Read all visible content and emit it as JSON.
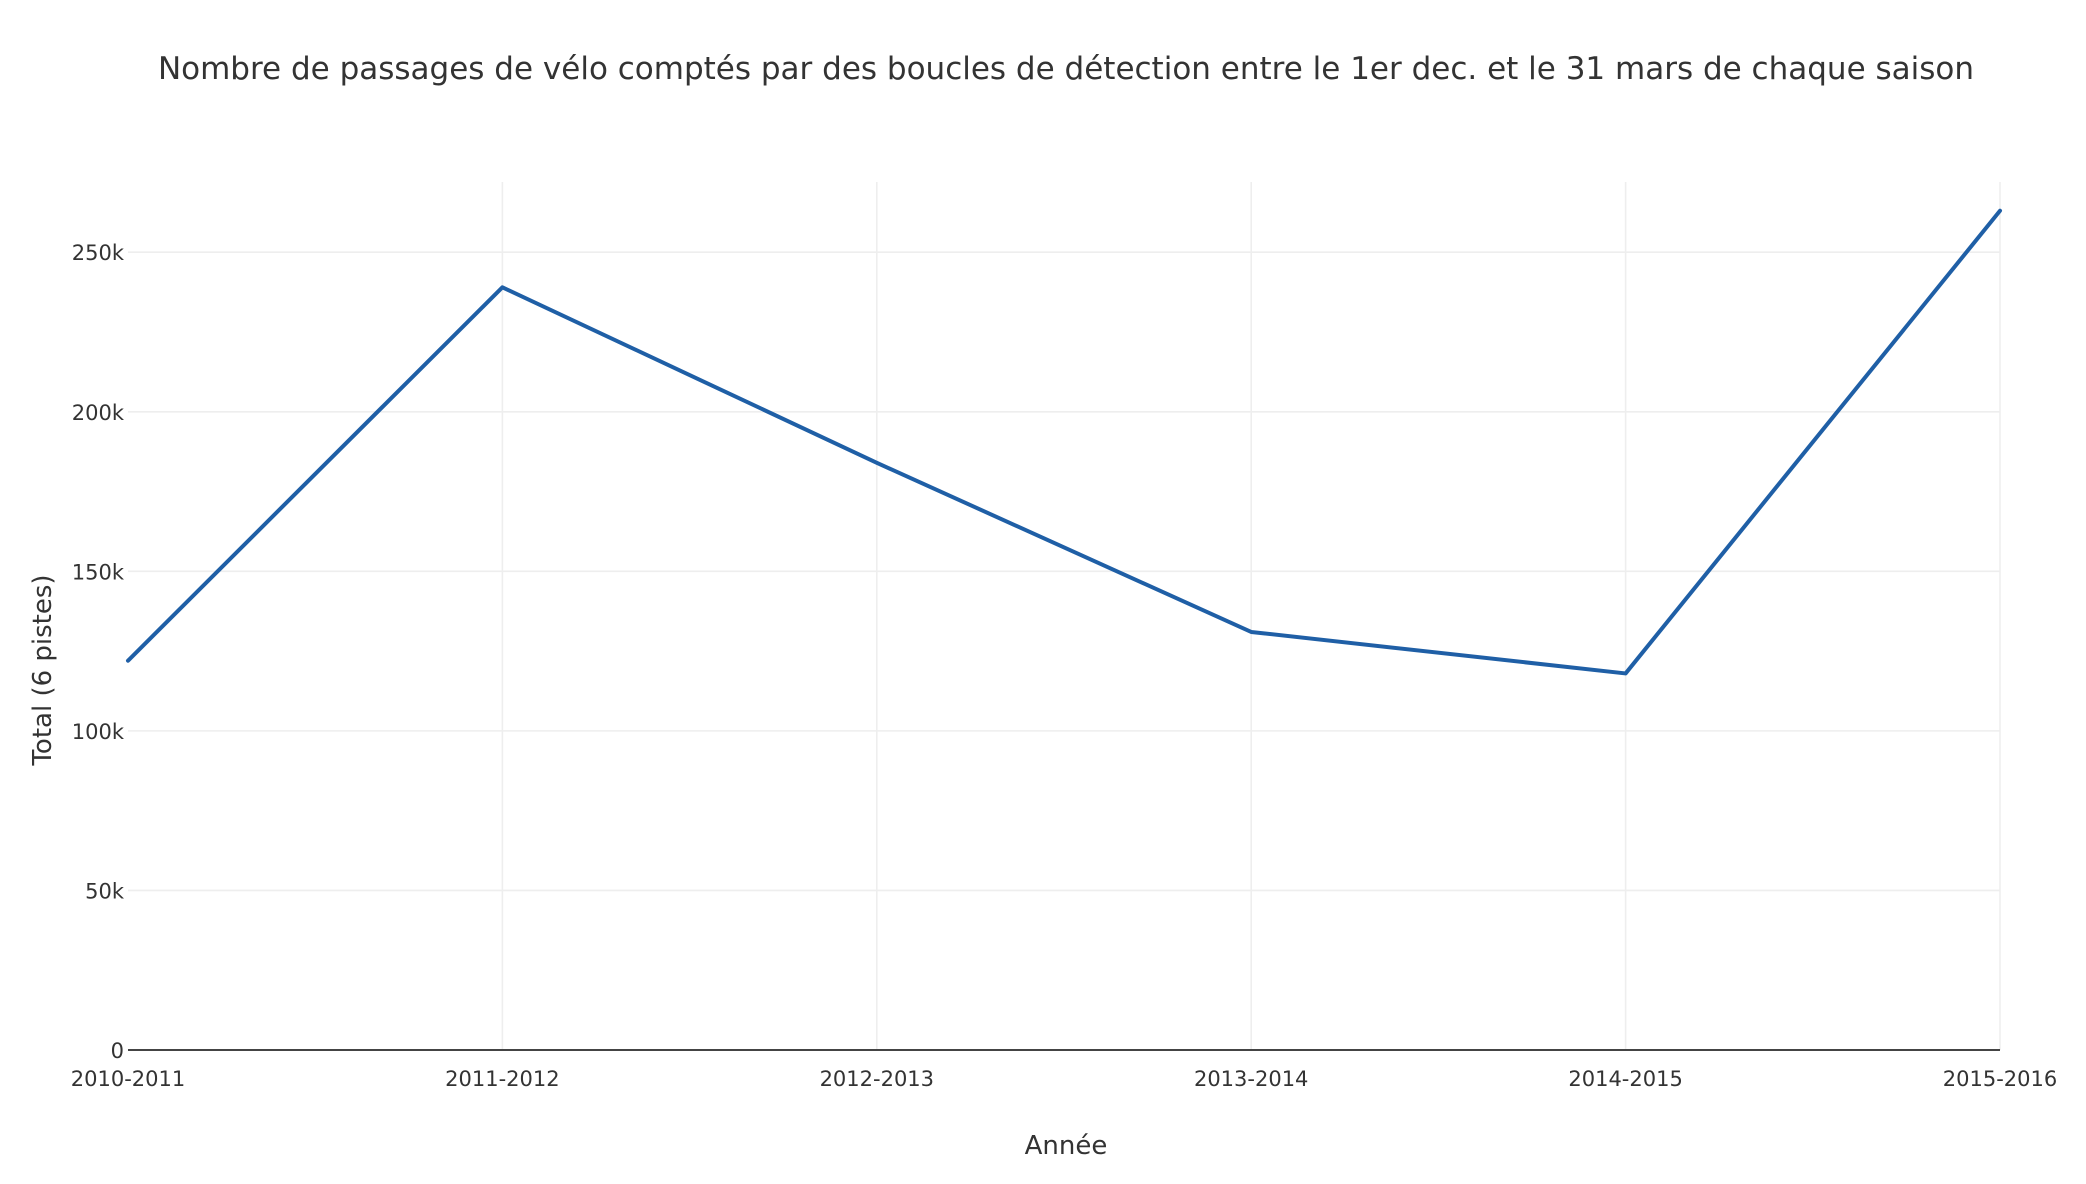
{
  "chart_data": {
    "type": "line",
    "title": "Nombre de passages de vélo comptés par des boucles de détection entre le 1er dec. et le 31 mars de chaque saison",
    "xlabel": "Année",
    "ylabel": "Total (6 pistes)",
    "categories": [
      "2010-2011",
      "2011-2012",
      "2012-2013",
      "2013-2014",
      "2014-2015",
      "2015-2016"
    ],
    "series": [
      {
        "values": [
          122000,
          239000,
          184000,
          131000,
          118000,
          263000
        ],
        "color": "#1f5fa6"
      }
    ],
    "ylim": [
      0,
      272000
    ],
    "yticks": [
      {
        "value": 0,
        "label": "0"
      },
      {
        "value": 50000,
        "label": "50k"
      },
      {
        "value": 100000,
        "label": "100k"
      },
      {
        "value": 150000,
        "label": "150k"
      },
      {
        "value": 200000,
        "label": "200k"
      },
      {
        "value": 250000,
        "label": "250k"
      }
    ],
    "grid": true,
    "legend": "none"
  }
}
